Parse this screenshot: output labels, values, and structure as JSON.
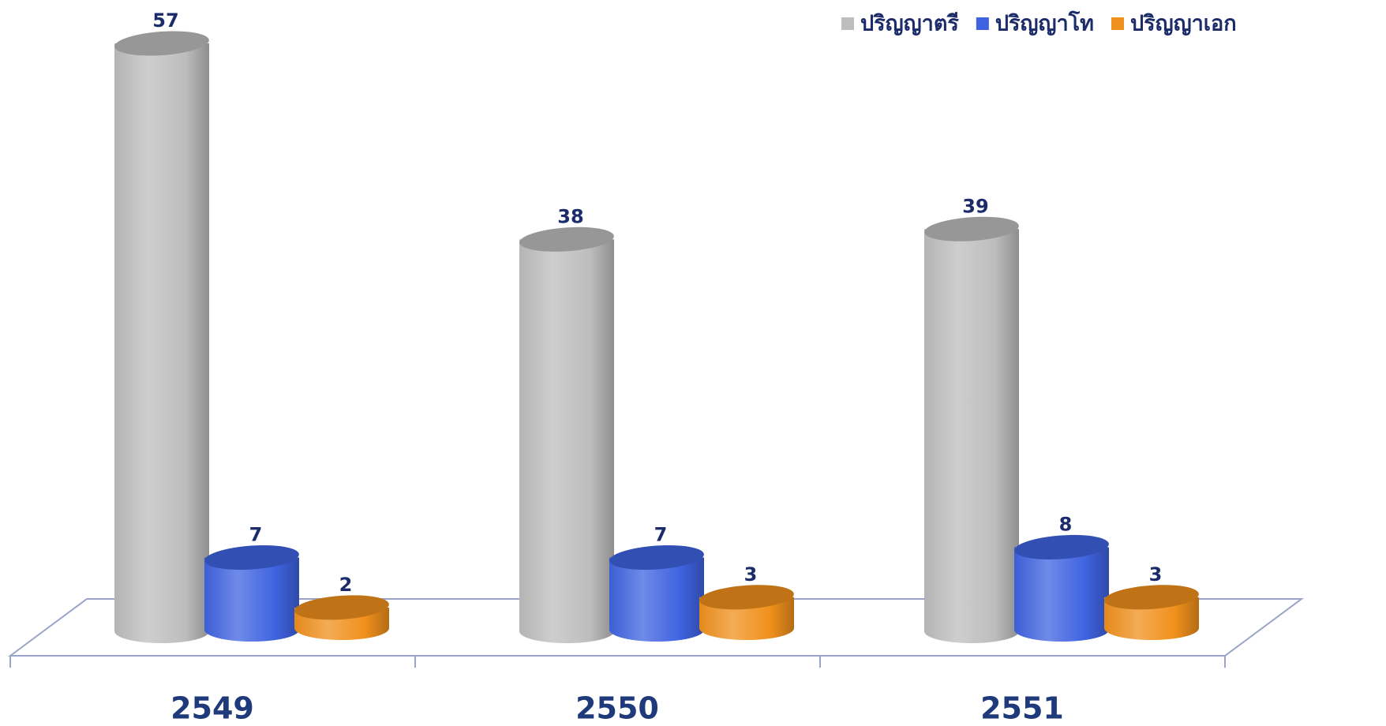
{
  "chart_data": {
    "type": "bar3d",
    "categories": [
      "2549",
      "2550",
      "2551"
    ],
    "series": [
      {
        "name": "ปริญญาตรี",
        "color": "#bdbdbd",
        "values": [
          57,
          38,
          39
        ]
      },
      {
        "name": "ปริญญาโท",
        "color": "#3f63e0",
        "values": [
          7,
          7,
          8
        ]
      },
      {
        "name": "ปริญญาเอก",
        "color": "#f0901c",
        "values": [
          2,
          3,
          3
        ]
      }
    ],
    "legend": "top-right"
  }
}
